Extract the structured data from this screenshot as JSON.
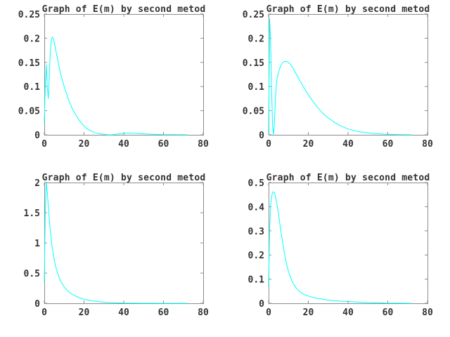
{
  "chart_data": [
    {
      "type": "line",
      "title": "Graph of E(m) by second metod",
      "xlim": [
        0,
        80
      ],
      "ylim": [
        0,
        0.25
      ],
      "xticks": [
        "0",
        "20",
        "40",
        "60",
        "80"
      ],
      "yticks": [
        "0",
        "0.05",
        "0.1",
        "0.15",
        "0.2",
        "0.25"
      ],
      "grid": false,
      "line_color": "#00ffff",
      "axis_color": "#8c8c8c",
      "series": [
        {
          "x": [
            0,
            0.5,
            1,
            1.5,
            2,
            2.5,
            3,
            3.5,
            4,
            4.5,
            5,
            6,
            7,
            8,
            9,
            10,
            12,
            14,
            16,
            18,
            20,
            22,
            24,
            26,
            28,
            30,
            32,
            34,
            36,
            38,
            40,
            42,
            44,
            46,
            48,
            50,
            55,
            60,
            65,
            70,
            72
          ],
          "y": [
            0.025,
            0.1,
            0.145,
            0.1,
            0.075,
            0.12,
            0.17,
            0.195,
            0.202,
            0.2,
            0.192,
            0.17,
            0.15,
            0.13,
            0.115,
            0.1,
            0.075,
            0.055,
            0.04,
            0.028,
            0.018,
            0.011,
            0.007,
            0.004,
            0.002,
            0.001,
            0.0,
            0.0,
            0.001,
            0.002,
            0.003,
            0.0035,
            0.0035,
            0.003,
            0.0025,
            0.002,
            0.001,
            0.0005,
            0.0003,
            0.0001,
            0.0
          ]
        }
      ]
    },
    {
      "type": "line",
      "title": "Graph of E(m) by second metod",
      "xlim": [
        0,
        80
      ],
      "ylim": [
        0,
        0.25
      ],
      "xticks": [
        "0",
        "20",
        "40",
        "60",
        "80"
      ],
      "yticks": [
        "0",
        "0.05",
        "0.1",
        "0.15",
        "0.2",
        "0.25"
      ],
      "grid": false,
      "line_color": "#00ffff",
      "axis_color": "#8c8c8c",
      "series": [
        {
          "x": [
            0,
            0.5,
            1,
            1.5,
            2,
            2.5,
            3,
            3.5,
            4,
            5,
            6,
            7,
            8,
            9,
            10,
            11,
            12,
            14,
            16,
            18,
            20,
            22,
            25,
            28,
            30,
            33,
            36,
            40,
            45,
            50,
            55,
            60,
            65,
            70,
            72
          ],
          "y": [
            0.0,
            0.24,
            0.2,
            0.1,
            0.02,
            0.0,
            0.03,
            0.08,
            0.11,
            0.13,
            0.142,
            0.149,
            0.152,
            0.152,
            0.15,
            0.146,
            0.14,
            0.125,
            0.11,
            0.096,
            0.083,
            0.071,
            0.055,
            0.042,
            0.035,
            0.026,
            0.019,
            0.012,
            0.007,
            0.004,
            0.002,
            0.001,
            0.0005,
            0.0002,
            0.0
          ]
        }
      ]
    },
    {
      "type": "line",
      "title": "Graph of E(m) by second metod",
      "xlim": [
        0,
        80
      ],
      "ylim": [
        0,
        2
      ],
      "xticks": [
        "0",
        "20",
        "40",
        "60",
        "80"
      ],
      "yticks": [
        "0",
        "0.5",
        "1",
        "1.5",
        "2"
      ],
      "grid": false,
      "line_color": "#00ffff",
      "axis_color": "#8c8c8c",
      "series": [
        {
          "x": [
            0,
            0.5,
            1,
            1.5,
            2,
            3,
            4,
            5,
            6,
            8,
            10,
            12,
            14,
            16,
            18,
            20,
            22,
            25,
            28,
            30,
            33,
            36,
            40,
            45,
            50,
            55,
            60,
            65,
            70,
            72
          ],
          "y": [
            0.35,
            1.5,
            2.0,
            1.85,
            1.6,
            1.2,
            0.92,
            0.72,
            0.57,
            0.38,
            0.27,
            0.2,
            0.15,
            0.115,
            0.088,
            0.068,
            0.053,
            0.037,
            0.025,
            0.019,
            0.013,
            0.009,
            0.005,
            0.003,
            0.0015,
            0.0008,
            0.0004,
            0.0002,
            0.0001,
            0.0
          ]
        }
      ]
    },
    {
      "type": "line",
      "title": "Graph of E(m) by second metod",
      "xlim": [
        0,
        80
      ],
      "ylim": [
        0,
        0.5
      ],
      "xticks": [
        "0",
        "20",
        "40",
        "60",
        "80"
      ],
      "yticks": [
        "0",
        "0.1",
        "0.2",
        "0.3",
        "0.4",
        "0.5"
      ],
      "grid": false,
      "line_color": "#00ffff",
      "axis_color": "#8c8c8c",
      "series": [
        {
          "x": [
            0,
            0.5,
            1,
            1.5,
            2,
            2.5,
            3,
            3.5,
            4,
            5,
            6,
            7,
            8,
            9,
            10,
            12,
            14,
            16,
            18,
            20,
            22,
            25,
            28,
            30,
            33,
            36,
            40,
            45,
            50,
            55,
            60,
            65,
            70,
            72
          ],
          "y": [
            0.07,
            0.3,
            0.4,
            0.44,
            0.458,
            0.462,
            0.455,
            0.44,
            0.42,
            0.37,
            0.31,
            0.255,
            0.205,
            0.165,
            0.132,
            0.088,
            0.062,
            0.046,
            0.036,
            0.03,
            0.025,
            0.02,
            0.016,
            0.014,
            0.011,
            0.009,
            0.007,
            0.005,
            0.003,
            0.002,
            0.001,
            0.0006,
            0.0003,
            0.0
          ]
        }
      ]
    }
  ]
}
